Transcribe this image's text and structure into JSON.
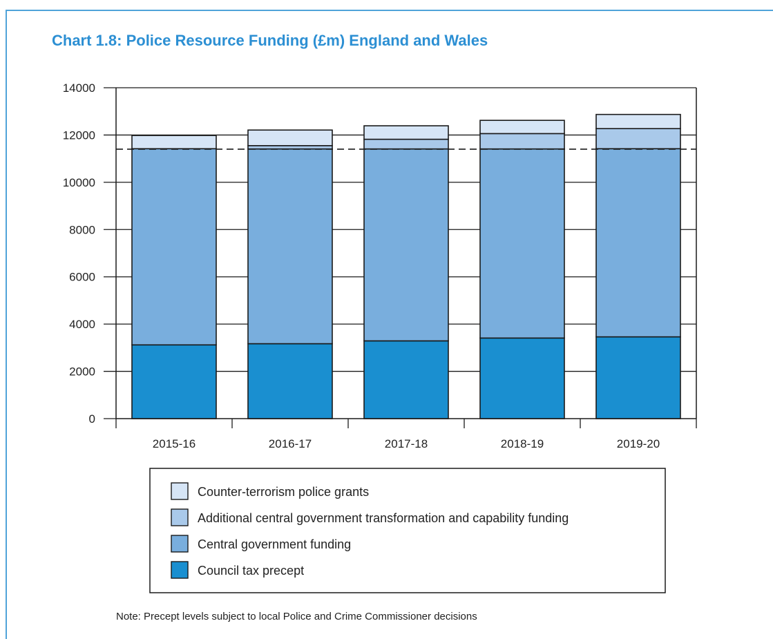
{
  "chart_data": {
    "type": "bar",
    "stacked": true,
    "title": "Chart 1.8: Police Resource Funding (£m) England and Wales",
    "categories": [
      "2015-16",
      "2016-17",
      "2017-18",
      "2018-19",
      "2019-20"
    ],
    "ylim": [
      0,
      14000
    ],
    "yticks": [
      "0",
      "2000",
      "4000",
      "6000",
      "8000",
      "10000",
      "12000",
      "14000"
    ],
    "reference_line": 11400,
    "grid": true,
    "legend_position": "bottom",
    "series": [
      {
        "name": "Council tax precept",
        "color": "#1a8fd0",
        "values": [
          3120,
          3170,
          3290,
          3410,
          3460
        ]
      },
      {
        "name": "Central government funding",
        "color": "#79aedd",
        "values": [
          8300,
          8240,
          8120,
          8000,
          7960
        ]
      },
      {
        "name": "Additional central government transformation and capability funding",
        "color": "#a9c9ea",
        "values": [
          0,
          140,
          410,
          650,
          850
        ]
      },
      {
        "name": "Counter-terrorism police grants",
        "color": "#d6e5f6",
        "values": [
          560,
          660,
          570,
          560,
          600
        ]
      }
    ],
    "legend_order": [
      3,
      2,
      1,
      0
    ]
  },
  "note": "Note: Precept levels subject to local Police and Crime Commissioner decisions"
}
